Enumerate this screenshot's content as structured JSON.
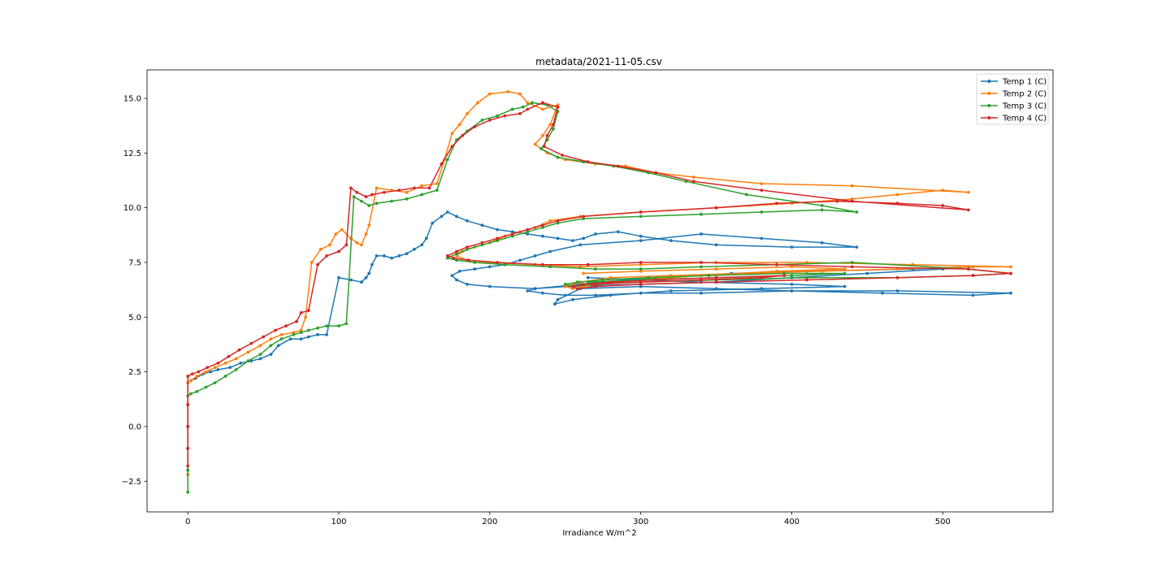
{
  "chart_data": {
    "type": "line",
    "title": "metadata/2021-11-05.csv",
    "xlabel": "Irradiance W/m^2",
    "ylabel": "",
    "xlim": [
      -27,
      573
    ],
    "ylim": [
      -3.9,
      16.3
    ],
    "xticks": [
      0,
      100,
      200,
      300,
      400,
      500
    ],
    "xtick_labels": [
      "0",
      "100",
      "200",
      "300",
      "400",
      "500"
    ],
    "yticks": [
      -2.5,
      0.0,
      2.5,
      5.0,
      7.5,
      10.0,
      12.5,
      15.0
    ],
    "ytick_labels": [
      "−2.5",
      "0.0",
      "2.5",
      "5.0",
      "7.5",
      "10.0",
      "12.5",
      "15.0"
    ],
    "grid": false,
    "legend_position": "top-right",
    "series": [
      {
        "name": "Temp 1 (C)",
        "color": "#1f77b4",
        "x": [
          0,
          0,
          0,
          0,
          0,
          2,
          5,
          10,
          15,
          20,
          28,
          35,
          42,
          48,
          55,
          60,
          68,
          75,
          80,
          86,
          92,
          100,
          108,
          115,
          118,
          120,
          122,
          125,
          130,
          135,
          140,
          145,
          150,
          155,
          158,
          162,
          168,
          172,
          178,
          185,
          195,
          205,
          215,
          225,
          235,
          245,
          255,
          262,
          270,
          285,
          300,
          320,
          350,
          400,
          443,
          420,
          380,
          340,
          300,
          260,
          240,
          230,
          220,
          210,
          200,
          190,
          180,
          175,
          178,
          185,
          200,
          230,
          260,
          290,
          320,
          360,
          410,
          480,
          517,
          500,
          450,
          400,
          350,
          300,
          250,
          230,
          225,
          235,
          250,
          270,
          300,
          340,
          400,
          470,
          545,
          520,
          460,
          400,
          350,
          300,
          260,
          245,
          243,
          255,
          280,
          320,
          380,
          435,
          400,
          340,
          300,
          265
        ],
        "y": [
          -2.0,
          -1.0,
          0.0,
          1.0,
          2.0,
          2.1,
          2.2,
          2.4,
          2.5,
          2.6,
          2.7,
          2.9,
          3.0,
          3.1,
          3.3,
          3.7,
          4.0,
          4.0,
          4.1,
          4.2,
          4.2,
          6.8,
          6.7,
          6.6,
          6.8,
          7.0,
          7.4,
          7.8,
          7.8,
          7.7,
          7.8,
          7.9,
          8.1,
          8.3,
          8.6,
          9.3,
          9.6,
          9.8,
          9.6,
          9.4,
          9.2,
          9.0,
          8.9,
          8.8,
          8.7,
          8.6,
          8.5,
          8.6,
          8.8,
          8.9,
          8.7,
          8.5,
          8.3,
          8.2,
          8.2,
          8.4,
          8.6,
          8.8,
          8.5,
          8.3,
          8.0,
          7.8,
          7.6,
          7.4,
          7.3,
          7.2,
          7.1,
          6.9,
          6.7,
          6.5,
          6.4,
          6.3,
          6.5,
          6.7,
          6.8,
          7.0,
          7.1,
          7.2,
          7.3,
          7.2,
          7.0,
          6.8,
          6.6,
          6.5,
          6.4,
          6.3,
          6.2,
          6.1,
          6.0,
          6.0,
          6.1,
          6.1,
          6.2,
          6.2,
          6.1,
          6.0,
          6.1,
          6.2,
          6.3,
          6.4,
          6.3,
          5.8,
          5.6,
          5.8,
          6.0,
          6.2,
          6.3,
          6.4,
          6.5,
          6.6,
          6.7,
          6.8
        ]
      },
      {
        "name": "Temp 2 (C)",
        "color": "#ff7f0e",
        "x": [
          0,
          0,
          0,
          0,
          0,
          2,
          6,
          12,
          18,
          25,
          32,
          40,
          48,
          55,
          62,
          70,
          75,
          78,
          82,
          88,
          94,
          98,
          102,
          108,
          112,
          115,
          118,
          120,
          125,
          135,
          145,
          155,
          165,
          170,
          175,
          180,
          185,
          192,
          200,
          212,
          220,
          225,
          235,
          245,
          240,
          235,
          230,
          238,
          250,
          270,
          290,
          310,
          335,
          380,
          440,
          517,
          500,
          470,
          440,
          400,
          350,
          300,
          260,
          240,
          230,
          220,
          210,
          200,
          190,
          182,
          178,
          185,
          200,
          230,
          260,
          300,
          350,
          410,
          480,
          545,
          520,
          470,
          420,
          370,
          320,
          280,
          260,
          250,
          255,
          270,
          300,
          340,
          390,
          435,
          400,
          350,
          300,
          262
        ],
        "y": [
          -2.2,
          -1.0,
          0.0,
          1.0,
          2.0,
          2.1,
          2.3,
          2.5,
          2.7,
          2.9,
          3.1,
          3.4,
          3.7,
          4.0,
          4.2,
          4.3,
          4.4,
          5.0,
          7.5,
          8.1,
          8.3,
          8.8,
          9.0,
          8.6,
          8.4,
          8.3,
          8.8,
          9.2,
          10.9,
          10.8,
          10.7,
          11.0,
          11.1,
          12.2,
          13.4,
          13.8,
          14.3,
          14.8,
          15.2,
          15.3,
          15.2,
          14.8,
          14.5,
          14.7,
          13.8,
          13.3,
          12.9,
          12.5,
          12.2,
          12.0,
          11.9,
          11.6,
          11.4,
          11.1,
          11.0,
          10.7,
          10.8,
          10.6,
          10.4,
          10.2,
          10.0,
          9.8,
          9.6,
          9.4,
          9.1,
          8.9,
          8.7,
          8.4,
          8.2,
          8.0,
          7.8,
          7.6,
          7.5,
          7.4,
          7.3,
          7.4,
          7.5,
          7.5,
          7.4,
          7.3,
          7.3,
          7.2,
          7.1,
          7.0,
          6.9,
          6.8,
          6.6,
          6.4,
          6.3,
          6.5,
          6.7,
          6.9,
          7.1,
          7.2,
          7.3,
          7.2,
          7.1,
          7.0
        ]
      },
      {
        "name": "Temp 3 (C)",
        "color": "#2ca02c",
        "x": [
          0,
          0,
          0,
          0,
          0,
          2,
          6,
          12,
          18,
          25,
          32,
          40,
          48,
          55,
          62,
          70,
          75,
          80,
          86,
          92,
          100,
          105,
          110,
          115,
          120,
          125,
          135,
          145,
          155,
          165,
          172,
          178,
          185,
          195,
          205,
          215,
          222,
          228,
          238,
          245,
          242,
          238,
          234,
          245,
          262,
          282,
          305,
          330,
          370,
          420,
          443,
          420,
          380,
          340,
          300,
          262,
          245,
          235,
          225,
          215,
          205,
          195,
          185,
          178,
          172,
          178,
          190,
          210,
          240,
          270,
          300,
          340,
          390,
          440,
          517,
          545,
          520,
          470,
          410,
          350,
          300,
          270,
          255,
          250,
          258,
          275,
          305,
          345,
          395,
          435,
          400,
          350,
          300,
          265
        ],
        "y": [
          -3.0,
          -2.0,
          -1.0,
          0.0,
          1.4,
          1.5,
          1.6,
          1.8,
          2.0,
          2.3,
          2.6,
          3.0,
          3.3,
          3.7,
          4.0,
          4.2,
          4.3,
          4.4,
          4.5,
          4.6,
          4.6,
          4.7,
          10.5,
          10.3,
          10.1,
          10.2,
          10.3,
          10.4,
          10.6,
          10.8,
          12.2,
          13.1,
          13.5,
          14.0,
          14.2,
          14.5,
          14.6,
          14.8,
          14.7,
          14.4,
          13.6,
          13.1,
          12.7,
          12.3,
          12.1,
          11.9,
          11.6,
          11.2,
          10.6,
          10.1,
          9.8,
          9.9,
          9.8,
          9.7,
          9.6,
          9.5,
          9.3,
          9.1,
          8.9,
          8.7,
          8.5,
          8.3,
          8.1,
          7.9,
          7.7,
          7.6,
          7.5,
          7.4,
          7.3,
          7.2,
          7.2,
          7.3,
          7.4,
          7.5,
          7.2,
          7.0,
          6.9,
          6.8,
          6.8,
          6.7,
          6.6,
          6.5,
          6.4,
          6.5,
          6.6,
          6.7,
          6.8,
          6.9,
          7.0,
          7.0,
          6.9,
          6.8,
          6.7,
          6.6
        ]
      },
      {
        "name": "Temp 4 (C)",
        "color": "#d62728",
        "x": [
          0,
          0,
          0,
          0,
          0,
          3,
          7,
          13,
          20,
          27,
          34,
          42,
          50,
          58,
          65,
          72,
          75,
          80,
          86,
          92,
          100,
          105,
          108,
          112,
          118,
          122,
          130,
          140,
          150,
          160,
          168,
          175,
          182,
          190,
          200,
          210,
          220,
          225,
          235,
          245,
          242,
          238,
          236,
          248,
          265,
          285,
          310,
          335,
          380,
          440,
          517,
          500,
          470,
          430,
          390,
          350,
          300,
          262,
          245,
          235,
          225,
          215,
          205,
          195,
          185,
          178,
          172,
          176,
          186,
          205,
          235,
          265,
          300,
          340,
          390,
          440,
          517,
          545,
          520,
          470,
          410,
          350,
          300,
          270,
          258,
          255,
          262,
          280,
          310,
          350,
          395,
          380,
          340,
          300,
          268
        ],
        "y": [
          -1.8,
          -1.0,
          0.0,
          1.0,
          2.3,
          2.4,
          2.5,
          2.7,
          2.9,
          3.2,
          3.5,
          3.8,
          4.1,
          4.4,
          4.6,
          4.8,
          5.2,
          5.3,
          7.4,
          7.8,
          8.0,
          8.3,
          10.9,
          10.7,
          10.5,
          10.6,
          10.7,
          10.8,
          10.9,
          10.9,
          12.0,
          12.8,
          13.3,
          13.7,
          14.0,
          14.2,
          14.3,
          14.5,
          14.8,
          14.6,
          13.8,
          13.3,
          12.8,
          12.4,
          12.1,
          11.9,
          11.6,
          11.2,
          10.8,
          10.3,
          9.9,
          10.1,
          10.2,
          10.3,
          10.2,
          10.0,
          9.8,
          9.6,
          9.4,
          9.2,
          9.0,
          8.8,
          8.6,
          8.4,
          8.2,
          8.0,
          7.8,
          7.7,
          7.6,
          7.5,
          7.4,
          7.4,
          7.5,
          7.5,
          7.4,
          7.3,
          7.2,
          7.0,
          6.9,
          6.8,
          6.7,
          6.6,
          6.5,
          6.4,
          6.3,
          6.4,
          6.5,
          6.6,
          6.7,
          6.8,
          6.9,
          6.8,
          6.7,
          6.6,
          6.5
        ]
      }
    ]
  }
}
